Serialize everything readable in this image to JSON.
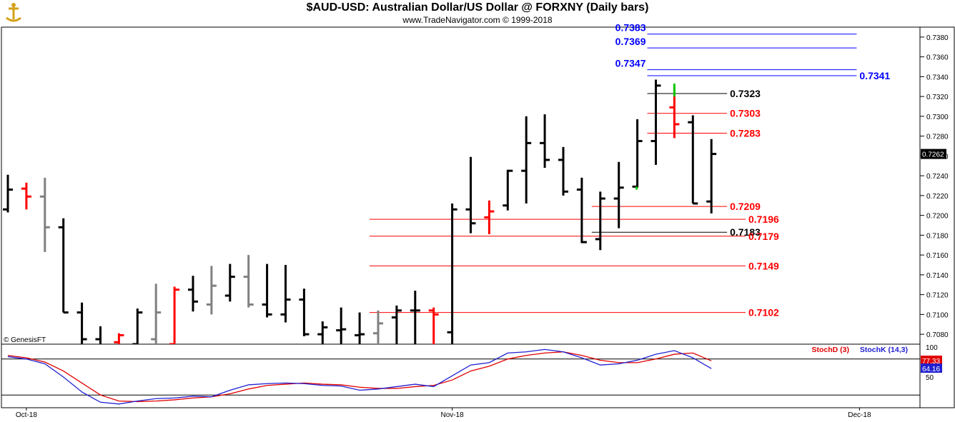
{
  "chart_data": {
    "type": "ohlc",
    "title": "$AUD-USD:  Australian Dollar/US Dollar @ FORXNY  (Daily bars)",
    "subtitle": "www.TradeNavigator.com © 1999-2018",
    "watermark": "© GenesisFT",
    "colors": {
      "up": "#000000",
      "down_highlight": "#ff0000",
      "gray": "#808080",
      "green": "#00cc00",
      "blue_level": "#0000ff",
      "red_level": "#ff0000",
      "stoch_d": "#e00000",
      "stoch_k": "#2020d0"
    },
    "price_axis": {
      "min": 7070,
      "max": 7390,
      "ticks": [
        "0.7080",
        "0.7100",
        "0.7120",
        "0.7140",
        "0.7160",
        "0.7180",
        "0.7200",
        "0.7220",
        "0.7240",
        "0.7260",
        "0.7280",
        "0.7300",
        "0.7320",
        "0.7340",
        "0.7360",
        "0.7380"
      ]
    },
    "date_labels": [
      {
        "label": "Oct-18",
        "bar": 1
      },
      {
        "label": "Nov-18",
        "bar": 24
      },
      {
        "label": "Dec-18",
        "bar": 46
      }
    ],
    "last_price": "0.7262",
    "bars": [
      {
        "h": 7241,
        "l": 7203,
        "o": 7206,
        "c": 7226,
        "color": "black"
      },
      {
        "h": 7233,
        "l": 7206,
        "o": 7227,
        "c": 7219,
        "color": "red"
      },
      {
        "h": 7238,
        "l": 7163,
        "o": 7219,
        "c": 7188,
        "color": "gray"
      },
      {
        "h": 7197,
        "l": 7102,
        "o": 7188,
        "c": 7102,
        "color": "black"
      },
      {
        "h": 7112,
        "l": 7060,
        "o": 7102,
        "c": 7075,
        "color": "black"
      },
      {
        "h": 7088,
        "l": 7050,
        "o": 7075,
        "c": 7060,
        "color": "black"
      },
      {
        "h": 7081,
        "l": 7060,
        "o": 7072,
        "c": 7079,
        "color": "red"
      },
      {
        "h": 7106,
        "l": 7060,
        "o": 7070,
        "c": 7102,
        "color": "black"
      },
      {
        "h": 7131,
        "l": 7060,
        "o": 7075,
        "c": 7102,
        "color": "gray"
      },
      {
        "h": 7128,
        "l": 7050,
        "o": 7070,
        "c": 7125,
        "color": "red"
      },
      {
        "h": 7139,
        "l": 7103,
        "o": 7125,
        "c": 7113,
        "color": "black"
      },
      {
        "h": 7149,
        "l": 7100,
        "o": 7110,
        "c": 7129,
        "color": "gray"
      },
      {
        "h": 7151,
        "l": 7113,
        "o": 7119,
        "c": 7138,
        "color": "black"
      },
      {
        "h": 7160,
        "l": 7107,
        "o": 7138,
        "c": 7110,
        "color": "gray"
      },
      {
        "h": 7151,
        "l": 7097,
        "o": 7110,
        "c": 7100,
        "color": "black"
      },
      {
        "h": 7150,
        "l": 7092,
        "o": 7100,
        "c": 7115,
        "color": "black"
      },
      {
        "h": 7126,
        "l": 7078,
        "o": 7115,
        "c": 7080,
        "color": "black"
      },
      {
        "h": 7093,
        "l": 7060,
        "o": 7080,
        "c": 7087,
        "color": "black"
      },
      {
        "h": 7107,
        "l": 7060,
        "o": 7084,
        "c": 7085,
        "color": "black"
      },
      {
        "h": 7102,
        "l": 7060,
        "o": 7079,
        "c": 7080,
        "color": "black"
      },
      {
        "h": 7104,
        "l": 7060,
        "o": 7081,
        "c": 7091,
        "color": "gray"
      },
      {
        "h": 7109,
        "l": 7060,
        "o": 7097,
        "c": 7104,
        "color": "black"
      },
      {
        "h": 7124,
        "l": 7060,
        "o": 7104,
        "c": 7104,
        "color": "black"
      },
      {
        "h": 7107,
        "l": 7070,
        "o": 7104,
        "c": 7100,
        "color": "red"
      },
      {
        "h": 7212,
        "l": 7060,
        "o": 7082,
        "c": 7206,
        "color": "black"
      },
      {
        "h": 7259,
        "l": 7182,
        "o": 7206,
        "c": 7192,
        "color": "black"
      },
      {
        "h": 7215,
        "l": 7181,
        "o": 7198,
        "c": 7204,
        "color": "red"
      },
      {
        "h": 7246,
        "l": 7205,
        "o": 7210,
        "c": 7245,
        "color": "black"
      },
      {
        "h": 7300,
        "l": 7212,
        "o": 7245,
        "c": 7273,
        "color": "black"
      },
      {
        "h": 7302,
        "l": 7248,
        "o": 7273,
        "c": 7256,
        "color": "black"
      },
      {
        "h": 7269,
        "l": 7220,
        "o": 7256,
        "c": 7224,
        "color": "black"
      },
      {
        "h": 7238,
        "l": 7172,
        "o": 7226,
        "c": 7173,
        "color": "black"
      },
      {
        "h": 7224,
        "l": 7165,
        "o": 7176,
        "c": 7217,
        "color": "black"
      },
      {
        "h": 7254,
        "l": 7187,
        "o": 7217,
        "c": 7228,
        "color": "black"
      },
      {
        "h": 7297,
        "l": 7228,
        "o": 7229,
        "c": 7275,
        "color": "black"
      },
      {
        "h": 7337,
        "l": 7251,
        "o": 7275,
        "c": 7331,
        "color": "black"
      },
      {
        "h": 7330,
        "l": 7278,
        "o": 7309,
        "c": 7292,
        "color": "red"
      },
      {
        "h": 7301,
        "l": 7212,
        "o": 7294,
        "c": 7212,
        "color": "black"
      },
      {
        "h": 7277,
        "l": 7202,
        "o": 7214,
        "c": 7262,
        "color": "black"
      }
    ],
    "levels": [
      {
        "label": "0.7383",
        "value": 7383,
        "color": "blue",
        "label_side": "left",
        "x0_bar": 35,
        "x1_bar": 46
      },
      {
        "label": "0.7369",
        "value": 7369,
        "color": "blue",
        "label_side": "left",
        "x0_bar": 35,
        "x1_bar": 46
      },
      {
        "label": "0.7347",
        "value": 7347,
        "color": "blue",
        "label_side": "left",
        "x0_bar": 35,
        "x1_bar": 46
      },
      {
        "label": "0.7341",
        "value": 7341,
        "color": "blue",
        "label_side": "right",
        "x0_bar": 35,
        "x1_bar": 46
      },
      {
        "label": "0.7323",
        "value": 7323,
        "color": "black",
        "label_side": "right",
        "x0_bar": 35,
        "x1_bar": 39
      },
      {
        "label": "0.7303",
        "value": 7303,
        "color": "red",
        "label_side": "right",
        "x0_bar": 35,
        "x1_bar": 39
      },
      {
        "label": "0.7283",
        "value": 7283,
        "color": "red",
        "label_side": "right",
        "x0_bar": 35,
        "x1_bar": 39
      },
      {
        "label": "0.7209",
        "value": 7209,
        "color": "red",
        "label_side": "right",
        "x0_bar": 32,
        "x1_bar": 39
      },
      {
        "label": "0.7196",
        "value": 7196,
        "color": "red",
        "label_side": "right",
        "x0_bar": 20,
        "x1_bar": 40
      },
      {
        "label": "0.7183",
        "value": 7183,
        "color": "black",
        "label_side": "right",
        "x0_bar": 32,
        "x1_bar": 39
      },
      {
        "label": "0.7179",
        "value": 7179,
        "color": "red",
        "label_side": "right",
        "x0_bar": 20,
        "x1_bar": 40
      },
      {
        "label": "0.7149",
        "value": 7149,
        "color": "red",
        "label_side": "right",
        "x0_bar": 20,
        "x1_bar": 40
      },
      {
        "label": "0.7102",
        "value": 7102,
        "color": "red",
        "label_side": "right",
        "x0_bar": 20,
        "x1_bar": 40
      }
    ],
    "stochastic": {
      "axis_ticks": [
        "100",
        "50"
      ],
      "legend_d": "StochD (3)",
      "legend_k": "StochK (14,3)",
      "d_value": "77.33",
      "k_value": "64.16",
      "k": [
        84,
        80,
        72,
        50,
        25,
        8,
        5,
        10,
        14,
        15,
        18,
        17,
        28,
        37,
        39,
        40,
        39,
        36,
        35,
        28,
        30,
        34,
        38,
        34,
        52,
        70,
        74,
        90,
        92,
        96,
        92,
        82,
        70,
        72,
        78,
        88,
        94,
        82,
        64
      ],
      "d": [
        86,
        82,
        75,
        60,
        40,
        20,
        10,
        9,
        10,
        12,
        15,
        17,
        22,
        30,
        36,
        38,
        40,
        38,
        37,
        33,
        31,
        31,
        34,
        36,
        45,
        60,
        68,
        80,
        86,
        90,
        92,
        86,
        78,
        74,
        74,
        80,
        88,
        90,
        77
      ]
    }
  }
}
